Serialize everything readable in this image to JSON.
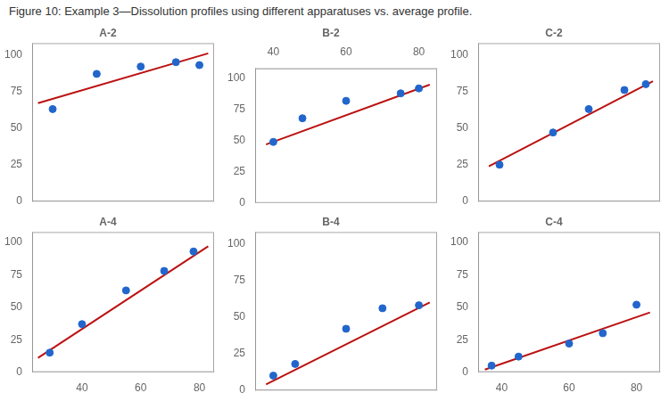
{
  "title": "Figure 10: Example 3—Dissolution profiles using different apparatuses vs. average profile.",
  "chart_data": [
    {
      "type": "scatter",
      "title": "A-2",
      "grid": false,
      "tick_labels": "y",
      "xlim": [
        23,
        85
      ],
      "ylim": [
        0,
        108
      ],
      "yticks": [
        0,
        25,
        50,
        75,
        100
      ],
      "series": [
        {
          "type": "line",
          "color": "#BB1111",
          "x": [
            25,
            83
          ],
          "values": [
            67,
            101
          ]
        },
        {
          "type": "scatter",
          "color": "#2266CC",
          "x": [
            30,
            45,
            60,
            72,
            80
          ],
          "values": [
            63,
            87,
            92,
            95,
            93
          ]
        }
      ]
    },
    {
      "type": "scatter",
      "title": "B-2",
      "grid": false,
      "xlim": [
        35,
        85
      ],
      "xticks": [
        40,
        60,
        80
      ],
      "ylim": [
        0,
        108
      ],
      "yticks": [
        0,
        25,
        50,
        75,
        100
      ],
      "series": [
        {
          "type": "line",
          "color": "#BB1111",
          "x": [
            38,
            83
          ],
          "values": [
            47,
            95
          ]
        },
        {
          "type": "scatter",
          "color": "#2266CC",
          "x": [
            40,
            48,
            60,
            75,
            80
          ],
          "values": [
            49,
            68,
            82,
            88,
            92
          ]
        }
      ]
    },
    {
      "type": "scatter",
      "title": "C-2",
      "grid": false,
      "tick_labels": "y",
      "xlim": [
        37,
        88
      ],
      "ylim": [
        0,
        108
      ],
      "yticks": [
        0,
        25,
        50,
        75,
        100
      ],
      "series": [
        {
          "type": "line",
          "color": "#BB1111",
          "x": [
            40,
            86
          ],
          "values": [
            24,
            82
          ]
        },
        {
          "type": "scatter",
          "color": "#2266CC",
          "x": [
            43,
            58,
            68,
            78,
            84
          ],
          "values": [
            25,
            47,
            63,
            76,
            80
          ]
        }
      ]
    },
    {
      "type": "scatter",
      "title": "A-4",
      "grid": false,
      "xlim": [
        23,
        85
      ],
      "xticks": [
        40,
        60,
        80
      ],
      "ylim": [
        0,
        108
      ],
      "yticks": [
        0,
        25,
        50,
        75,
        100
      ],
      "series": [
        {
          "type": "line",
          "color": "#BB1111",
          "x": [
            25,
            83
          ],
          "values": [
            11,
            97
          ]
        },
        {
          "type": "scatter",
          "color": "#2266CC",
          "x": [
            29,
            40,
            55,
            68,
            78
          ],
          "values": [
            15,
            37,
            63,
            78,
            93
          ]
        }
      ]
    },
    {
      "type": "scatter",
      "title": "B-4",
      "grid": false,
      "tick_labels": "y",
      "xlim": [
        35,
        85
      ],
      "ylim": [
        0,
        108
      ],
      "yticks": [
        0,
        25,
        50,
        75,
        100
      ],
      "series": [
        {
          "type": "line",
          "color": "#BB1111",
          "x": [
            38,
            83
          ],
          "values": [
            4,
            60
          ]
        },
        {
          "type": "scatter",
          "color": "#2266CC",
          "x": [
            40,
            46,
            60,
            70,
            80
          ],
          "values": [
            10,
            18,
            42,
            56,
            58
          ]
        }
      ]
    },
    {
      "type": "scatter",
      "title": "C-4",
      "grid": false,
      "xlim": [
        33,
        87
      ],
      "xticks": [
        40,
        60,
        80
      ],
      "ylim": [
        0,
        108
      ],
      "yticks": [
        0,
        25,
        50,
        75,
        100
      ],
      "series": [
        {
          "type": "line",
          "color": "#BB1111",
          "x": [
            35,
            84
          ],
          "values": [
            2,
            46
          ]
        },
        {
          "type": "scatter",
          "color": "#2266CC",
          "x": [
            37,
            45,
            60,
            70,
            80
          ],
          "values": [
            5,
            12,
            22,
            30,
            52
          ]
        }
      ]
    }
  ]
}
